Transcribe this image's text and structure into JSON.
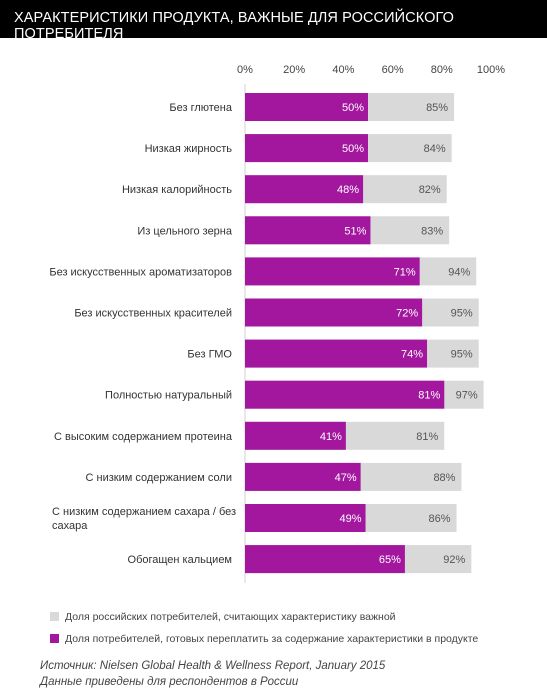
{
  "title": "ХАРАКТЕРИСТИКИ ПРОДУКТА, ВАЖНЫЕ ДЛЯ РОССИЙСКОГО ПОТРЕБИТЕЛЯ",
  "source_line1": "Источник: Nielsen Global Health & Wellness Report, January 2015",
  "source_line2": "Данные приведены для респондентов в России",
  "colors": {
    "important": "#d9d9d9",
    "pay_more": "#a3179f",
    "title_bg": "#000000"
  },
  "chart_data": {
    "type": "bar",
    "orientation": "horizontal",
    "xlim": [
      0,
      100
    ],
    "ticks": [
      "0%",
      "20%",
      "40%",
      "60%",
      "80%",
      "100%"
    ],
    "tick_values": [
      0,
      20,
      40,
      60,
      80,
      100
    ],
    "categories": [
      "Без глютена",
      "Низкая жирность",
      "Низкая калорийность",
      "Из цельного зерна",
      "Без искусственных ароматизаторов",
      "Без искусственных красителей",
      "Без ГМО",
      "Полностью натуральный",
      "С высоким содержанием протеина",
      "С низким содержанием соли",
      "С низким содержанием сахара / без сахара",
      "Обогащен кальцием"
    ],
    "series": [
      {
        "name": "Доля российских потребителей, считающих характеристику важной",
        "values": [
          85,
          84,
          82,
          83,
          94,
          95,
          95,
          97,
          81,
          88,
          86,
          92
        ],
        "labels": [
          "85%",
          "84%",
          "82%",
          "83%",
          "94%",
          "95%",
          "95%",
          "97%",
          "81%",
          "88%",
          "86%",
          "92%"
        ]
      },
      {
        "name": "Доля потребителей, готовых переплатить за содержание характеристики в продукте",
        "values": [
          50,
          50,
          48,
          51,
          71,
          72,
          74,
          81,
          41,
          47,
          49,
          65
        ],
        "labels": [
          "50%",
          "50%",
          "48%",
          "51%",
          "71%",
          "72%",
          "74%",
          "81%",
          "41%",
          "47%",
          "49%",
          "65%"
        ]
      }
    ],
    "legend_position": "bottom",
    "grid": false
  }
}
